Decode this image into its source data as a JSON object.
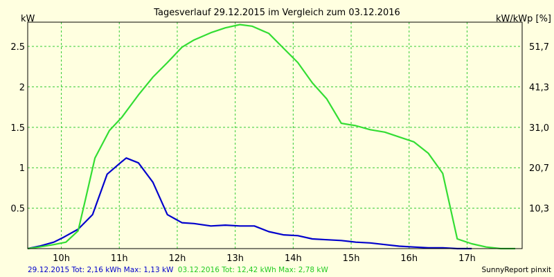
{
  "chart_data": {
    "type": "line",
    "title": "Tagesverlauf 29.12.2015 im Vergleich zum 03.12.2016",
    "ylabel_left": "kW",
    "ylabel_right": "kW/kWp [%]",
    "ylim": [
      0,
      2.8
    ],
    "xlim": [
      9.42,
      17.95
    ],
    "y_ticks": [
      {
        "value": 0.5,
        "label": "0.5"
      },
      {
        "value": 1,
        "label": "1"
      },
      {
        "value": 1.5,
        "label": "1.5"
      },
      {
        "value": 2,
        "label": "2"
      },
      {
        "value": 2.5,
        "label": "2.5"
      }
    ],
    "y2_ticks": [
      {
        "value": 0.5,
        "label": "10,3"
      },
      {
        "value": 1,
        "label": "20,7"
      },
      {
        "value": 1.5,
        "label": "31,0"
      },
      {
        "value": 2,
        "label": "41,3"
      },
      {
        "value": 2.5,
        "label": "51,7"
      }
    ],
    "x_ticks": [
      {
        "value": 10,
        "label": "10h"
      },
      {
        "value": 11,
        "label": "11h"
      },
      {
        "value": 12,
        "label": "12h"
      },
      {
        "value": 13,
        "label": "13h"
      },
      {
        "value": 14,
        "label": "14h"
      },
      {
        "value": 15,
        "label": "15h"
      },
      {
        "value": 16,
        "label": "16h"
      },
      {
        "value": 17,
        "label": "17h"
      }
    ],
    "grid": true,
    "series": [
      {
        "name": "29.12.2015 Tot: 2,16 kWh Max: 1,13 kW",
        "color": "#0000cc",
        "x": [
          9.42,
          9.62,
          9.87,
          10.04,
          10.29,
          10.54,
          10.79,
          11.0,
          11.12,
          11.33,
          11.58,
          11.83,
          12.08,
          12.29,
          12.58,
          12.83,
          13.08,
          13.33,
          13.58,
          13.83,
          14.08,
          14.33,
          14.58,
          14.83,
          15.08,
          15.33,
          15.58,
          15.83,
          16.08,
          16.33,
          16.58,
          16.83,
          17.08
        ],
        "y": [
          0.0,
          0.03,
          0.08,
          0.14,
          0.24,
          0.42,
          0.92,
          1.05,
          1.12,
          1.06,
          0.82,
          0.42,
          0.32,
          0.31,
          0.28,
          0.29,
          0.28,
          0.28,
          0.21,
          0.17,
          0.16,
          0.12,
          0.11,
          0.1,
          0.08,
          0.07,
          0.05,
          0.03,
          0.02,
          0.01,
          0.01,
          0.0,
          0.0
        ]
      },
      {
        "name": "03.12.2016 Tot: 12,42 kWh Max: 2,78 kW",
        "color": "#33dd33",
        "x": [
          9.42,
          9.62,
          9.87,
          10.08,
          10.29,
          10.42,
          10.58,
          10.83,
          11.04,
          11.33,
          11.58,
          11.83,
          12.08,
          12.29,
          12.58,
          12.83,
          13.08,
          13.29,
          13.58,
          13.83,
          14.08,
          14.33,
          14.58,
          14.83,
          15.08,
          15.33,
          15.58,
          15.83,
          16.08,
          16.33,
          16.58,
          16.83,
          17.08,
          17.33,
          17.58,
          17.83
        ],
        "y": [
          0.0,
          0.02,
          0.05,
          0.08,
          0.22,
          0.62,
          1.12,
          1.46,
          1.62,
          1.9,
          2.12,
          2.3,
          2.49,
          2.58,
          2.67,
          2.73,
          2.77,
          2.75,
          2.66,
          2.48,
          2.3,
          2.05,
          1.85,
          1.55,
          1.52,
          1.47,
          1.44,
          1.38,
          1.32,
          1.18,
          0.93,
          0.12,
          0.06,
          0.02,
          0.0,
          0.0
        ]
      }
    ],
    "watermark": "SunnyReport pinxit"
  }
}
